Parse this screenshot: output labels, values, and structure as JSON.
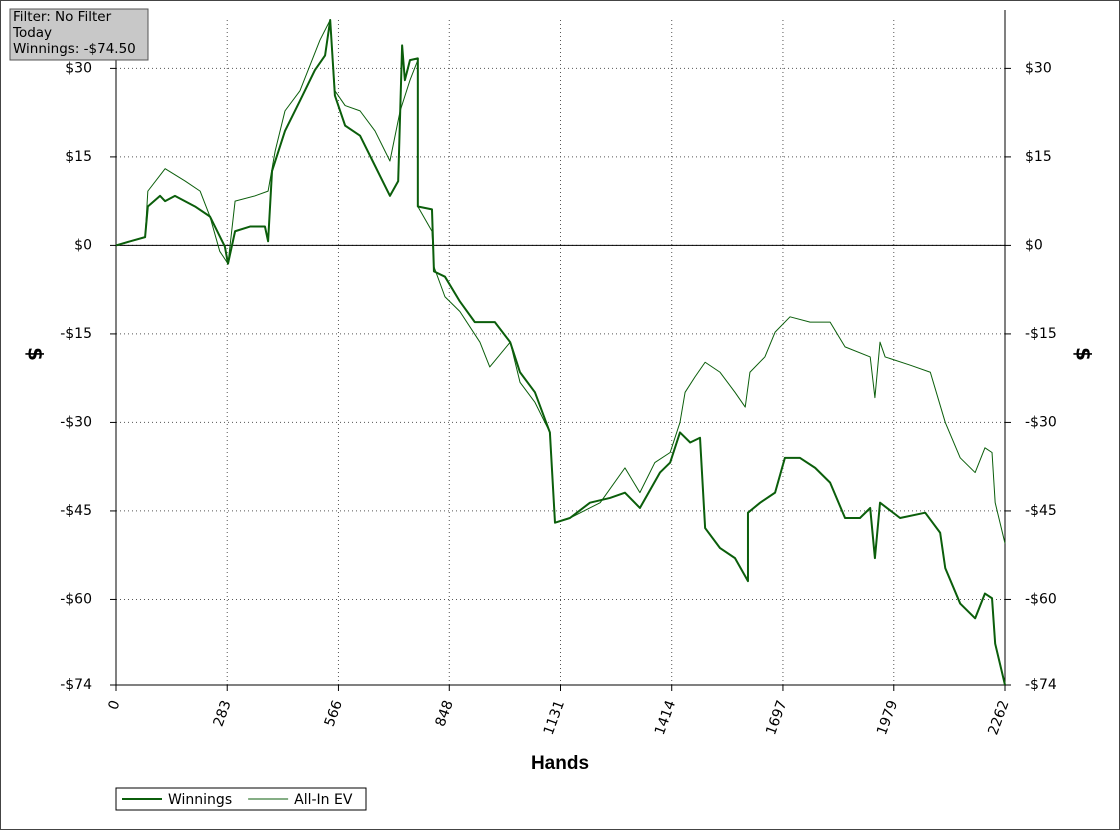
{
  "chart_data": {
    "type": "line",
    "annotations": [
      "Filter: No Filter",
      "Today",
      "Winnings: -$74.50"
    ],
    "xlabel": "Hands",
    "ylabel": "$",
    "y2label": "$",
    "xlim": [
      0,
      2262
    ],
    "xticks": [
      0,
      283,
      566,
      848,
      1131,
      1414,
      1697,
      1979,
      2262
    ],
    "ylim": [
      -74.5,
      38.2
    ],
    "yticks": [
      {
        "value": 30,
        "label": "$30"
      },
      {
        "value": 15,
        "label": "$15"
      },
      {
        "value": 0,
        "label": "$0"
      },
      {
        "value": -15,
        "label": "-$15"
      },
      {
        "value": -30,
        "label": "-$30"
      },
      {
        "value": -45,
        "label": "-$45"
      },
      {
        "value": -60,
        "label": "-$60"
      },
      {
        "value": -74.5,
        "label": "-$74"
      }
    ],
    "grid": true,
    "legend": "bottom-left",
    "series": [
      {
        "name": "Winnings",
        "color": "#0b5e0b",
        "line_width": 2,
        "x": [
          0,
          36,
          74,
          81,
          112,
          125,
          150,
          201,
          239,
          277,
          285,
          303,
          341,
          379,
          387,
          397,
          430,
          468,
          506,
          532,
          545,
          557,
          583,
          621,
          659,
          697,
          718,
          728,
          735,
          748,
          768,
          768,
          804,
          809,
          837,
          875,
          913,
          964,
          1003,
          1028,
          1066,
          1104,
          1117,
          1155,
          1206,
          1257,
          1295,
          1333,
          1384,
          1410,
          1435,
          1461,
          1486,
          1499,
          1537,
          1575,
          1608,
          1608,
          1639,
          1677,
          1702,
          1740,
          1779,
          1817,
          1855,
          1893,
          1919,
          1931,
          1944,
          1995,
          2059,
          2097,
          2110,
          2148,
          2186,
          2211,
          2229,
          2237,
          2262
        ],
        "values": [
          0,
          0.7,
          1.4,
          6.6,
          8.4,
          7.5,
          8.4,
          6.6,
          4.9,
          -0.2,
          -3.1,
          2.4,
          3.2,
          3.2,
          0.7,
          12.6,
          19.4,
          24.5,
          29.7,
          32.2,
          38.2,
          25.4,
          20.3,
          18.6,
          13.5,
          8.4,
          10.9,
          33.9,
          28,
          31.4,
          31.7,
          6.6,
          6.1,
          -4.4,
          -5.3,
          -9.5,
          -13,
          -13,
          -16.4,
          -21.5,
          -24.9,
          -31.7,
          -47,
          -46.2,
          -43.6,
          -42.8,
          -41.9,
          -44.5,
          -38.5,
          -36.8,
          -31.7,
          -33.4,
          -32.6,
          -47.9,
          -51.3,
          -53,
          -56.9,
          -45.3,
          -43.6,
          -41.9,
          -36,
          -36,
          -37.7,
          -40.2,
          -46.2,
          -46.2,
          -44.5,
          -53,
          -43.6,
          -46.2,
          -45.3,
          -48.7,
          -54.7,
          -60.7,
          -63.2,
          -59,
          -59.8,
          -67.5,
          -74.5
        ]
      },
      {
        "name": "All-In EV",
        "color": "#0b5e0b",
        "line_width": 1,
        "x": [
          0,
          36,
          74,
          81,
          125,
          176,
          214,
          239,
          264,
          285,
          303,
          354,
          387,
          405,
          430,
          468,
          519,
          545,
          557,
          583,
          621,
          659,
          697,
          723,
          748,
          768,
          768,
          804,
          809,
          837,
          875,
          926,
          951,
          1003,
          1028,
          1066,
          1104,
          1117,
          1155,
          1232,
          1295,
          1333,
          1371,
          1410,
          1435,
          1448,
          1473,
          1499,
          1537,
          1575,
          1601,
          1613,
          1651,
          1677,
          1715,
          1766,
          1817,
          1855,
          1919,
          1931,
          1944,
          1957,
          2021,
          2072,
          2110,
          2148,
          2186,
          2211,
          2229,
          2237,
          2262
        ],
        "values": [
          0,
          0.7,
          1.4,
          9.2,
          13,
          10.9,
          9.2,
          4.9,
          -1,
          -3.1,
          7.5,
          8.4,
          9.2,
          16,
          22.8,
          26.2,
          34.8,
          38.2,
          26.2,
          23.7,
          22.8,
          19.4,
          14.3,
          22.8,
          28,
          31.4,
          6.6,
          2.4,
          -3.6,
          -8.7,
          -11.2,
          -16.4,
          -20.6,
          -16.4,
          -23.2,
          -26.6,
          -31.7,
          -47,
          -46.2,
          -43.6,
          -37.7,
          -41.9,
          -36.8,
          -35.1,
          -30,
          -24.9,
          -22.3,
          -19.8,
          -21.5,
          -24.9,
          -27.4,
          -21.5,
          -18.9,
          -14.7,
          -12.1,
          -13,
          -13,
          -17.2,
          -18.9,
          -25.8,
          -16.4,
          -18.9,
          -20.3,
          -21.5,
          -30,
          -36,
          -38.5,
          -34.3,
          -35.1,
          -43.6,
          -50.5
        ]
      }
    ]
  }
}
